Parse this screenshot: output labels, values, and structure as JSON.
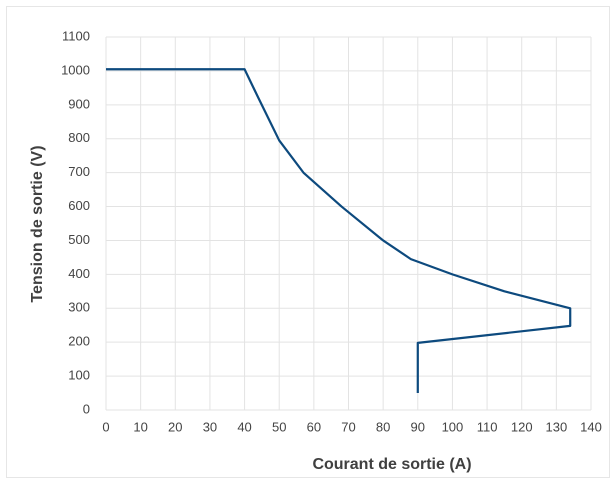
{
  "chart_data": {
    "type": "line",
    "xlabel": "Courant de sortie (A)",
    "ylabel": "Tension de sortie (V)",
    "x": [
      0,
      40,
      44,
      50,
      57,
      68,
      80,
      88,
      100,
      115,
      134,
      134,
      90,
      90
    ],
    "series": [
      {
        "color": "#0d4a7e",
        "values": [
          1005,
          1005,
          920,
          795,
          700,
          600,
          500,
          445,
          400,
          350,
          300,
          248,
          198,
          50
        ]
      }
    ],
    "xlim": [
      0,
      140
    ],
    "xticks": [
      0,
      10,
      20,
      30,
      40,
      50,
      60,
      70,
      80,
      90,
      100,
      110,
      120,
      130,
      140
    ],
    "ylim": [
      0,
      1100
    ],
    "yticks": [
      0,
      100,
      200,
      300,
      400,
      500,
      600,
      700,
      800,
      900,
      1000,
      1100
    ],
    "grid": true
  }
}
